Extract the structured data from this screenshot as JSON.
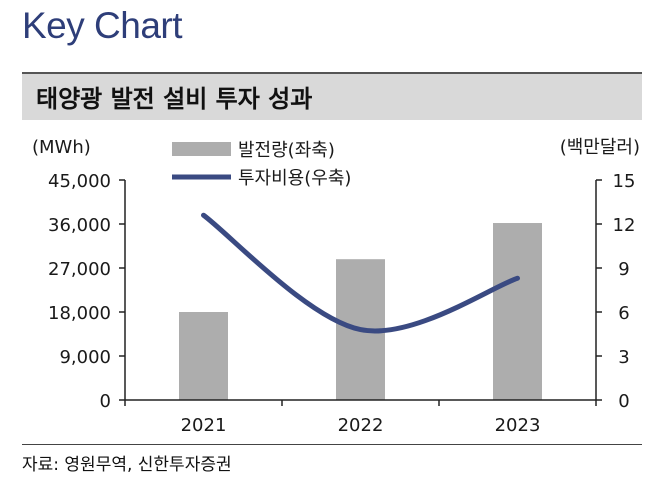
{
  "heading": "Key Chart",
  "chart_data": {
    "type": "bar+line",
    "title": "태양광 발전 설비 투자 성과",
    "categories": [
      "2021",
      "2022",
      "2023"
    ],
    "series": [
      {
        "name": "발전량(좌축)",
        "type": "bar",
        "axis": "left",
        "color": "#adadad",
        "values": [
          18000,
          28800,
          36200
        ]
      },
      {
        "name": "투자비용(우축)",
        "type": "line",
        "axis": "right",
        "color": "#3a4a82",
        "values": [
          12.6,
          4.8,
          8.3
        ]
      }
    ],
    "left_axis": {
      "unit": "(MWh)",
      "range": [
        0,
        45000
      ],
      "ticks": [
        0,
        9000,
        18000,
        27000,
        36000,
        45000
      ],
      "tick_labels": [
        "0",
        "9,000",
        "18,000",
        "27,000",
        "36,000",
        "45,000"
      ]
    },
    "right_axis": {
      "unit": "(백만달러)",
      "range": [
        0,
        15
      ],
      "ticks": [
        0,
        3,
        6,
        9,
        12,
        15
      ],
      "tick_labels": [
        "0",
        "3",
        "6",
        "9",
        "12",
        "15"
      ]
    },
    "grid": false,
    "legend_position": "top-center"
  },
  "source": "자료: 영원무역, 신한투자증권"
}
